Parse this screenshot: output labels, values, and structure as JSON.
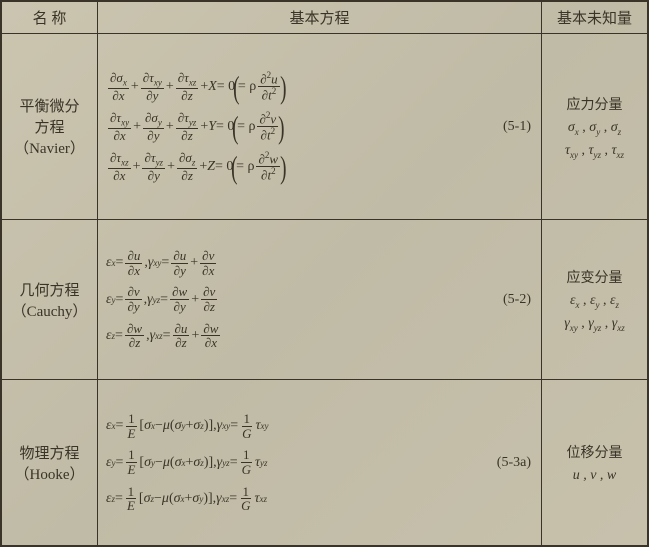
{
  "colors": {
    "bg": "#c9c3ae",
    "ink": "#3a3428",
    "border": "#3a3428"
  },
  "header": {
    "name": "名 称",
    "eq": "基本方程",
    "unk": "基本未知量"
  },
  "rows": [
    {
      "name_l1": "平衡微分",
      "name_l2": "方程",
      "name_l3": "（Navier）",
      "eqnum": "(5-1)",
      "unk_title": "应力分量",
      "unk_line1_a": "σ",
      "unk_line1_a_sub": "x",
      "unk_line1_b": "σ",
      "unk_line1_b_sub": "y",
      "unk_line1_c": "σ",
      "unk_line1_c_sub": "z",
      "unk_line2_a": "τ",
      "unk_line2_a_sub": "xy",
      "unk_line2_b": "τ",
      "unk_line2_b_sub": "yz",
      "unk_line2_c": "τ",
      "unk_line2_c_sub": "xz",
      "eq": {
        "l1": {
          "t1": "∂σ",
          "s1": "x",
          "b1": "∂x",
          "t2": "∂τ",
          "s2": "xy",
          "b2": "∂y",
          "t3": "∂τ",
          "s3": "xz",
          "b3": "∂z",
          "F": "X",
          "r_t": "∂",
          "r_sup": "2",
          "r_var": "u",
          "r_b": "∂t",
          "r_bsup": "2"
        },
        "l2": {
          "t1": "∂τ",
          "s1": "xy",
          "b1": "∂x",
          "t2": "∂σ",
          "s2": "y",
          "b2": "∂y",
          "t3": "∂τ",
          "s3": "yz",
          "b3": "∂z",
          "F": "Y",
          "r_t": "∂",
          "r_sup": "2",
          "r_var": "v",
          "r_b": "∂t",
          "r_bsup": "2"
        },
        "l3": {
          "t1": "∂τ",
          "s1": "xz",
          "b1": "∂x",
          "t2": "∂τ",
          "s2": "yz",
          "b2": "∂y",
          "t3": "∂σ",
          "s3": "z",
          "b3": "∂z",
          "F": "Z",
          "r_t": "∂",
          "r_sup": "2",
          "r_var": "w",
          "r_b": "∂t",
          "r_bsup": "2"
        }
      }
    },
    {
      "name_l1": "几何方程",
      "name_l2": "（Cauchy）",
      "eqnum": "(5-2)",
      "unk_title": "应变分量",
      "unk_line1_a": "ε",
      "unk_line1_a_sub": "x",
      "unk_line1_b": "ε",
      "unk_line1_b_sub": "y",
      "unk_line1_c": "ε",
      "unk_line1_c_sub": "z",
      "unk_line2_a": "γ",
      "unk_line2_a_sub": "xy",
      "unk_line2_b": "γ",
      "unk_line2_b_sub": "yz",
      "unk_line2_c": "γ",
      "unk_line2_c_sub": "xz",
      "eq": {
        "l1": {
          "e": "ε",
          "es": "x",
          "n1": "∂u",
          "d1": "∂x",
          "g": "γ",
          "gs": "xy",
          "n2": "∂u",
          "d2": "∂y",
          "n3": "∂v",
          "d3": "∂x"
        },
        "l2": {
          "e": "ε",
          "es": "y",
          "n1": "∂v",
          "d1": "∂y",
          "g": "γ",
          "gs": "yz",
          "n2": "∂w",
          "d2": "∂y",
          "n3": "∂v",
          "d3": "∂z"
        },
        "l3": {
          "e": "ε",
          "es": "z",
          "n1": "∂w",
          "d1": "∂z",
          "g": "γ",
          "gs": "xz",
          "n2": "∂u",
          "d2": "∂z",
          "n3": "∂w",
          "d3": "∂x"
        }
      }
    },
    {
      "name_l1": "物理方程",
      "name_l2": "（Hooke）",
      "eqnum": "(5-3a)",
      "unk_title": "位移分量",
      "unk_line1": "u , v , w",
      "eq": {
        "l1": {
          "e": "ε",
          "es": "x",
          "s": "σ",
          "ss": "x",
          "a": "σ",
          "as": "y",
          "b": "σ",
          "bs": "z",
          "g": "γ",
          "gs": "xy",
          "t": "τ",
          "ts": "xy"
        },
        "l2": {
          "e": "ε",
          "es": "y",
          "s": "σ",
          "ss": "y",
          "a": "σ",
          "as": "x",
          "b": "σ",
          "bs": "z",
          "g": "γ",
          "gs": "yz",
          "t": "τ",
          "ts": "yz"
        },
        "l3": {
          "e": "ε",
          "es": "z",
          "s": "σ",
          "ss": "z",
          "a": "σ",
          "as": "x",
          "b": "σ",
          "bs": "y",
          "g": "γ",
          "gs": "xz",
          "t": "τ",
          "ts": "xz"
        }
      }
    }
  ],
  "sym": {
    "plus": " + ",
    "eq0": " = 0",
    "eqrho": " = ρ ",
    "comma": ",  ",
    "mu": "μ",
    "oneE_num": "1",
    "oneE_den": "E",
    "oneG_num": "1",
    "oneG_den": "G",
    "lpar": "(",
    "rpar": ")",
    "lbr": "[ ",
    "rbr": " ]",
    "eq": " = "
  }
}
